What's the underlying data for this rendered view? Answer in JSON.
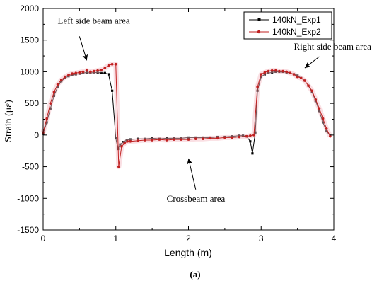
{
  "chart_data": {
    "type": "line",
    "xlabel": "Length (m)",
    "ylabel": "Strain (με)",
    "xlim": [
      0,
      4
    ],
    "ylim": [
      -1500,
      2000
    ],
    "xticks": [
      "0",
      "1",
      "2",
      "3",
      "4"
    ],
    "yticks": [
      "-1500",
      "-1000",
      "-500",
      "0",
      "500",
      "1000",
      "1500",
      "2000"
    ],
    "grid": false,
    "legend_position": "top-right",
    "caption": "(a)",
    "annotations": [
      {
        "text": "Left side beam area",
        "x": 0.2,
        "y": 1760,
        "arrow_from": [
          0.5,
          1560
        ],
        "arrow_to": [
          0.6,
          1180
        ]
      },
      {
        "text": "Right side beam area",
        "x": 3.45,
        "y": 1350,
        "arrow_from": [
          3.8,
          1240
        ],
        "arrow_to": [
          3.6,
          1060
        ]
      },
      {
        "text": "Crossbeam area",
        "x": 1.7,
        "y": -1050,
        "arrow_from": [
          2.1,
          -860
        ],
        "arrow_to": [
          2.0,
          -370
        ]
      }
    ],
    "series": [
      {
        "name": "140kN_Exp1",
        "color": "#000000",
        "marker": "square",
        "x": [
          0.0,
          0.05,
          0.1,
          0.15,
          0.2,
          0.25,
          0.3,
          0.35,
          0.4,
          0.45,
          0.5,
          0.55,
          0.6,
          0.65,
          0.7,
          0.75,
          0.8,
          0.85,
          0.9,
          0.95,
          1.0,
          1.03,
          1.06,
          1.1,
          1.15,
          1.2,
          1.3,
          1.4,
          1.5,
          1.6,
          1.7,
          1.8,
          1.9,
          2.0,
          2.1,
          2.2,
          2.3,
          2.4,
          2.5,
          2.6,
          2.7,
          2.75,
          2.8,
          2.85,
          2.88,
          2.92,
          2.95,
          3.0,
          3.05,
          3.1,
          3.15,
          3.2,
          3.25,
          3.3,
          3.35,
          3.4,
          3.45,
          3.5,
          3.55,
          3.6,
          3.65,
          3.7,
          3.75,
          3.8,
          3.85,
          3.9,
          3.95
        ],
        "y": [
          20,
          200,
          420,
          620,
          760,
          850,
          900,
          930,
          950,
          960,
          970,
          980,
          990,
          980,
          990,
          990,
          980,
          980,
          960,
          700,
          -50,
          -220,
          -150,
          -110,
          -80,
          -70,
          -60,
          -60,
          -50,
          -60,
          -50,
          -50,
          -50,
          -40,
          -40,
          -40,
          -40,
          -30,
          -30,
          -20,
          -10,
          -10,
          -20,
          -100,
          -290,
          40,
          700,
          920,
          960,
          980,
          990,
          1000,
          1000,
          1000,
          990,
          980,
          960,
          940,
          900,
          860,
          780,
          680,
          540,
          380,
          200,
          60,
          -10
        ]
      },
      {
        "name": "140kN_Exp2",
        "color": "#c02020",
        "marker": "circle",
        "x": [
          0.0,
          0.05,
          0.1,
          0.15,
          0.2,
          0.25,
          0.3,
          0.35,
          0.4,
          0.45,
          0.5,
          0.55,
          0.6,
          0.65,
          0.7,
          0.75,
          0.8,
          0.85,
          0.9,
          0.95,
          1.0,
          1.04,
          1.08,
          1.12,
          1.16,
          1.2,
          1.3,
          1.4,
          1.5,
          1.6,
          1.7,
          1.8,
          1.9,
          2.0,
          2.1,
          2.2,
          2.3,
          2.4,
          2.5,
          2.6,
          2.7,
          2.8,
          2.85,
          2.9,
          2.95,
          3.0,
          3.05,
          3.1,
          3.15,
          3.2,
          3.25,
          3.3,
          3.35,
          3.4,
          3.45,
          3.5,
          3.55,
          3.6,
          3.65,
          3.7,
          3.75,
          3.8,
          3.85,
          3.9,
          3.95
        ],
        "y": [
          40,
          260,
          500,
          680,
          800,
          870,
          920,
          950,
          970,
          980,
          990,
          1000,
          1020,
          1000,
          1010,
          1020,
          1030,
          1060,
          1100,
          1120,
          1120,
          -500,
          -180,
          -130,
          -100,
          -100,
          -90,
          -80,
          -80,
          -70,
          -80,
          -70,
          -70,
          -70,
          -60,
          -60,
          -50,
          -50,
          -40,
          -40,
          -30,
          -20,
          -10,
          0,
          760,
          960,
          990,
          1010,
          1020,
          1020,
          1010,
          1010,
          1000,
          980,
          960,
          920,
          900,
          860,
          780,
          700,
          560,
          420,
          260,
          100,
          -20
        ]
      }
    ]
  }
}
